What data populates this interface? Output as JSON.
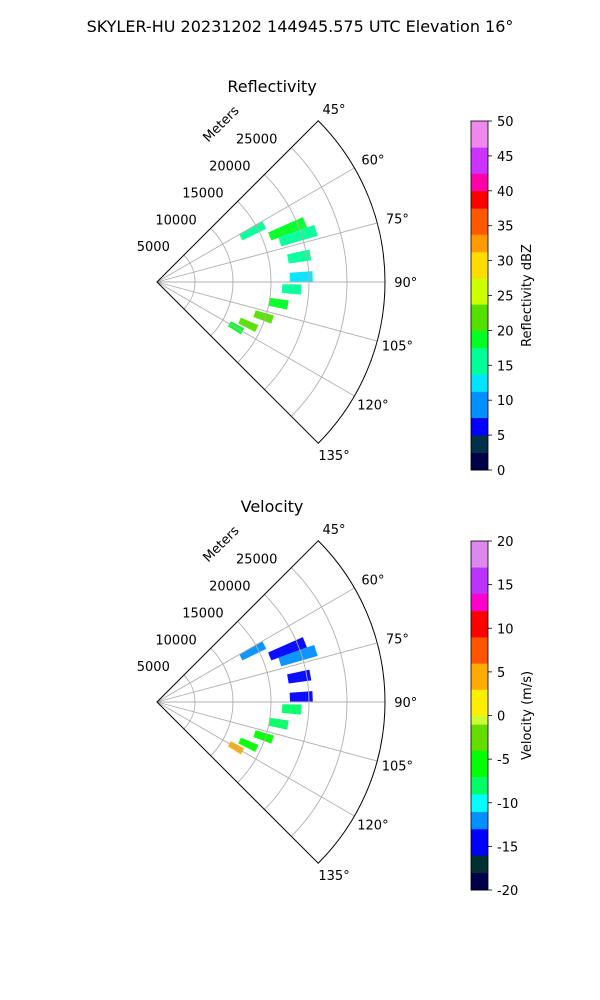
{
  "suptitle": "SKYLER-HU  20231202  144945.575 UTC Elevation 16°",
  "colors": {
    "grid": "#b0b0b0",
    "spine": "#000000"
  },
  "chart_data": [
    {
      "type": "polar-sector-radar",
      "title": "Reflectivity",
      "radial_label": "Meters",
      "radial_ticks": [
        "5000",
        "10000",
        "15000",
        "20000",
        "25000"
      ],
      "radial_tick_values": [
        5000,
        10000,
        15000,
        20000,
        25000
      ],
      "rlim": [
        0,
        30000
      ],
      "angle_ticks": [
        "45°",
        "60°",
        "75°",
        "90°",
        "105°",
        "120°",
        "135°"
      ],
      "angle_tick_values": [
        45,
        60,
        75,
        90,
        105,
        120,
        135
      ],
      "theta_range_deg": [
        45,
        135
      ],
      "colorbar": {
        "label": "Reflectivity dBZ",
        "range": [
          0,
          50
        ],
        "ticks": [
          "0",
          "5",
          "10",
          "15",
          "20",
          "25",
          "30",
          "35",
          "40",
          "45",
          "50"
        ],
        "tick_values": [
          0,
          5,
          10,
          15,
          20,
          25,
          30,
          35,
          40,
          45,
          50
        ]
      },
      "echoes": [
        {
          "az": 62,
          "r_start": 12500,
          "r_end": 16000,
          "value": 15
        },
        {
          "az": 68,
          "r_start": 16000,
          "r_end": 21000,
          "value": 18
        },
        {
          "az": 72,
          "r_start": 17000,
          "r_end": 22000,
          "value": 14
        },
        {
          "az": 80,
          "r_start": 17500,
          "r_end": 20500,
          "value": 16
        },
        {
          "az": 88,
          "r_start": 17500,
          "r_end": 20500,
          "value": 12
        },
        {
          "az": 93,
          "r_start": 16500,
          "r_end": 19000,
          "value": 15
        },
        {
          "az": 100,
          "r_start": 15000,
          "r_end": 17500,
          "value": 19
        },
        {
          "az": 108,
          "r_start": 13500,
          "r_end": 16000,
          "value": 21
        },
        {
          "az": 115,
          "r_start": 12000,
          "r_end": 14500,
          "value": 23
        },
        {
          "az": 120,
          "r_start": 11000,
          "r_end": 13000,
          "value": 17
        }
      ]
    },
    {
      "type": "polar-sector-radar",
      "title": "Velocity",
      "radial_label": "Meters",
      "radial_ticks": [
        "5000",
        "10000",
        "15000",
        "20000",
        "25000"
      ],
      "radial_tick_values": [
        5000,
        10000,
        15000,
        20000,
        25000
      ],
      "rlim": [
        0,
        30000
      ],
      "angle_ticks": [
        "45°",
        "60°",
        "75°",
        "90°",
        "105°",
        "120°",
        "135°"
      ],
      "angle_tick_values": [
        45,
        60,
        75,
        90,
        105,
        120,
        135
      ],
      "theta_range_deg": [
        45,
        135
      ],
      "colorbar": {
        "label": "Velocity (m/s)",
        "range": [
          -20,
          20
        ],
        "ticks": [
          "-20",
          "-15",
          "-10",
          "-5",
          "0",
          "5",
          "10",
          "15",
          "20"
        ],
        "tick_values": [
          -20,
          -15,
          -10,
          -5,
          0,
          5,
          10,
          15,
          20
        ]
      },
      "echoes": [
        {
          "az": 62,
          "r_start": 12500,
          "r_end": 16000,
          "value": -12
        },
        {
          "az": 68,
          "r_start": 16000,
          "r_end": 21000,
          "value": -14
        },
        {
          "az": 72,
          "r_start": 17000,
          "r_end": 22000,
          "value": -13
        },
        {
          "az": 80,
          "r_start": 17500,
          "r_end": 20500,
          "value": -14
        },
        {
          "az": 88,
          "r_start": 17500,
          "r_end": 20500,
          "value": -15
        },
        {
          "az": 93,
          "r_start": 16500,
          "r_end": 19000,
          "value": -9
        },
        {
          "az": 100,
          "r_start": 15000,
          "r_end": 17500,
          "value": -8
        },
        {
          "az": 108,
          "r_start": 13500,
          "r_end": 16000,
          "value": -7
        },
        {
          "az": 115,
          "r_start": 12000,
          "r_end": 14500,
          "value": -6
        },
        {
          "az": 120,
          "r_start": 11000,
          "r_end": 13000,
          "value": 4
        }
      ]
    }
  ]
}
